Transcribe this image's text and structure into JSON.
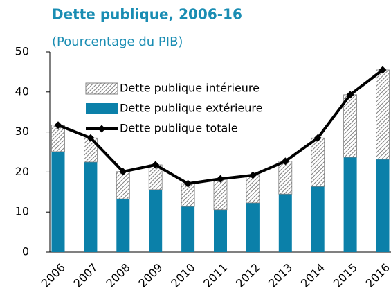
{
  "chart_data": {
    "type": "bar",
    "stacked": true,
    "title": "Dette publique, 2006-16",
    "subtitle": "(Pourcentage du PIB)",
    "categories": [
      "2006",
      "2007",
      "2008",
      "2009",
      "2010",
      "2011",
      "2012",
      "2013",
      "2014",
      "2015",
      "2016"
    ],
    "series": [
      {
        "name": "Dette publique extérieure",
        "type": "bar",
        "color": "#0b80a9",
        "values": [
          25.1,
          22.5,
          13.3,
          15.6,
          11.4,
          10.6,
          12.3,
          14.5,
          16.4,
          23.7,
          23.2
        ]
      },
      {
        "name": "Dette publique intérieure",
        "type": "bar",
        "color": "#7f7f7f",
        "hatch": true,
        "values": [
          6.6,
          6.0,
          6.8,
          6.2,
          5.7,
          7.7,
          6.9,
          8.2,
          12.1,
          15.6,
          22.3
        ]
      },
      {
        "name": "Dette publique totale",
        "type": "line",
        "color": "#000000",
        "values": [
          31.7,
          28.5,
          20.1,
          21.8,
          17.1,
          18.3,
          19.2,
          22.7,
          28.5,
          39.3,
          45.5
        ]
      }
    ],
    "legend_order": [
      1,
      0,
      2
    ],
    "ylim": [
      0,
      50
    ],
    "yticks": [
      0,
      10,
      20,
      30,
      40,
      50
    ],
    "grid": false
  }
}
